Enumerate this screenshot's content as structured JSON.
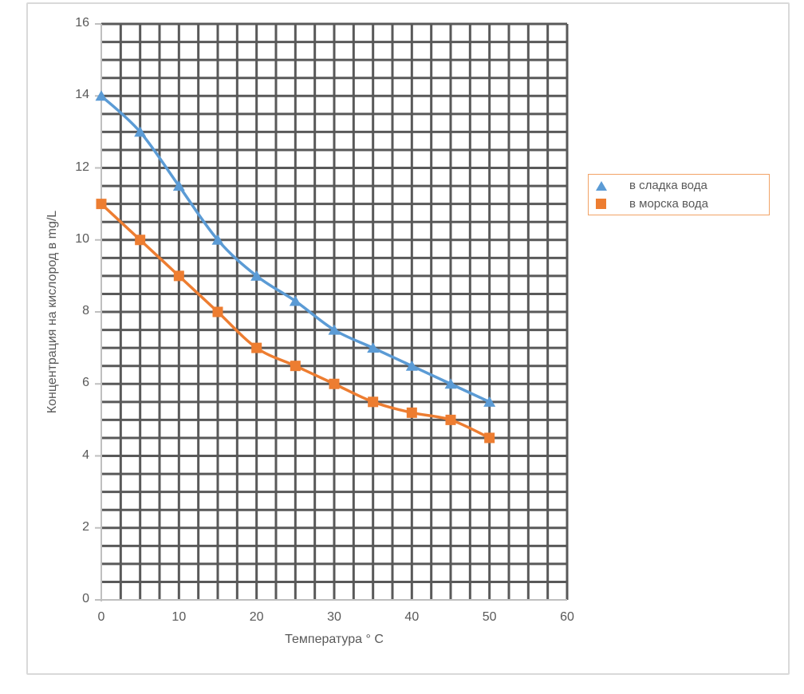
{
  "colors": {
    "frame_border": "#D9D9D9",
    "grid": "#595959",
    "axis": "#BFBFBF",
    "text": "#595959",
    "series_fresh": "#5B9BD5",
    "series_sea": "#ED7D31",
    "legend_border": "#F2A367"
  },
  "chart_data": {
    "type": "line",
    "title": "",
    "xlabel": "Температура ° C",
    "ylabel": "Концентрация на кислород в mg/L",
    "x": [
      0,
      5,
      10,
      15,
      20,
      25,
      30,
      35,
      40,
      45,
      50
    ],
    "series": [
      {
        "name": "в сладка вода",
        "marker": "triangle",
        "color": "#5B9BD5",
        "values": [
          14,
          13,
          11.5,
          10,
          9,
          8.3,
          7.5,
          7,
          6.5,
          6,
          5.5
        ]
      },
      {
        "name": "в морска вода",
        "marker": "square",
        "color": "#ED7D31",
        "values": [
          11,
          10,
          9,
          8,
          7,
          6.5,
          6,
          5.5,
          5.2,
          5,
          4.5
        ]
      }
    ],
    "xlim": [
      0,
      60
    ],
    "ylim": [
      0,
      16
    ],
    "x_ticks": [
      0,
      10,
      20,
      30,
      40,
      50,
      60
    ],
    "y_ticks": [
      0,
      2,
      4,
      6,
      8,
      10,
      12,
      14,
      16
    ],
    "grid": {
      "x_step": 2.5,
      "y_step": 0.5,
      "on": true
    },
    "legend_position": "right",
    "smooth": true
  }
}
